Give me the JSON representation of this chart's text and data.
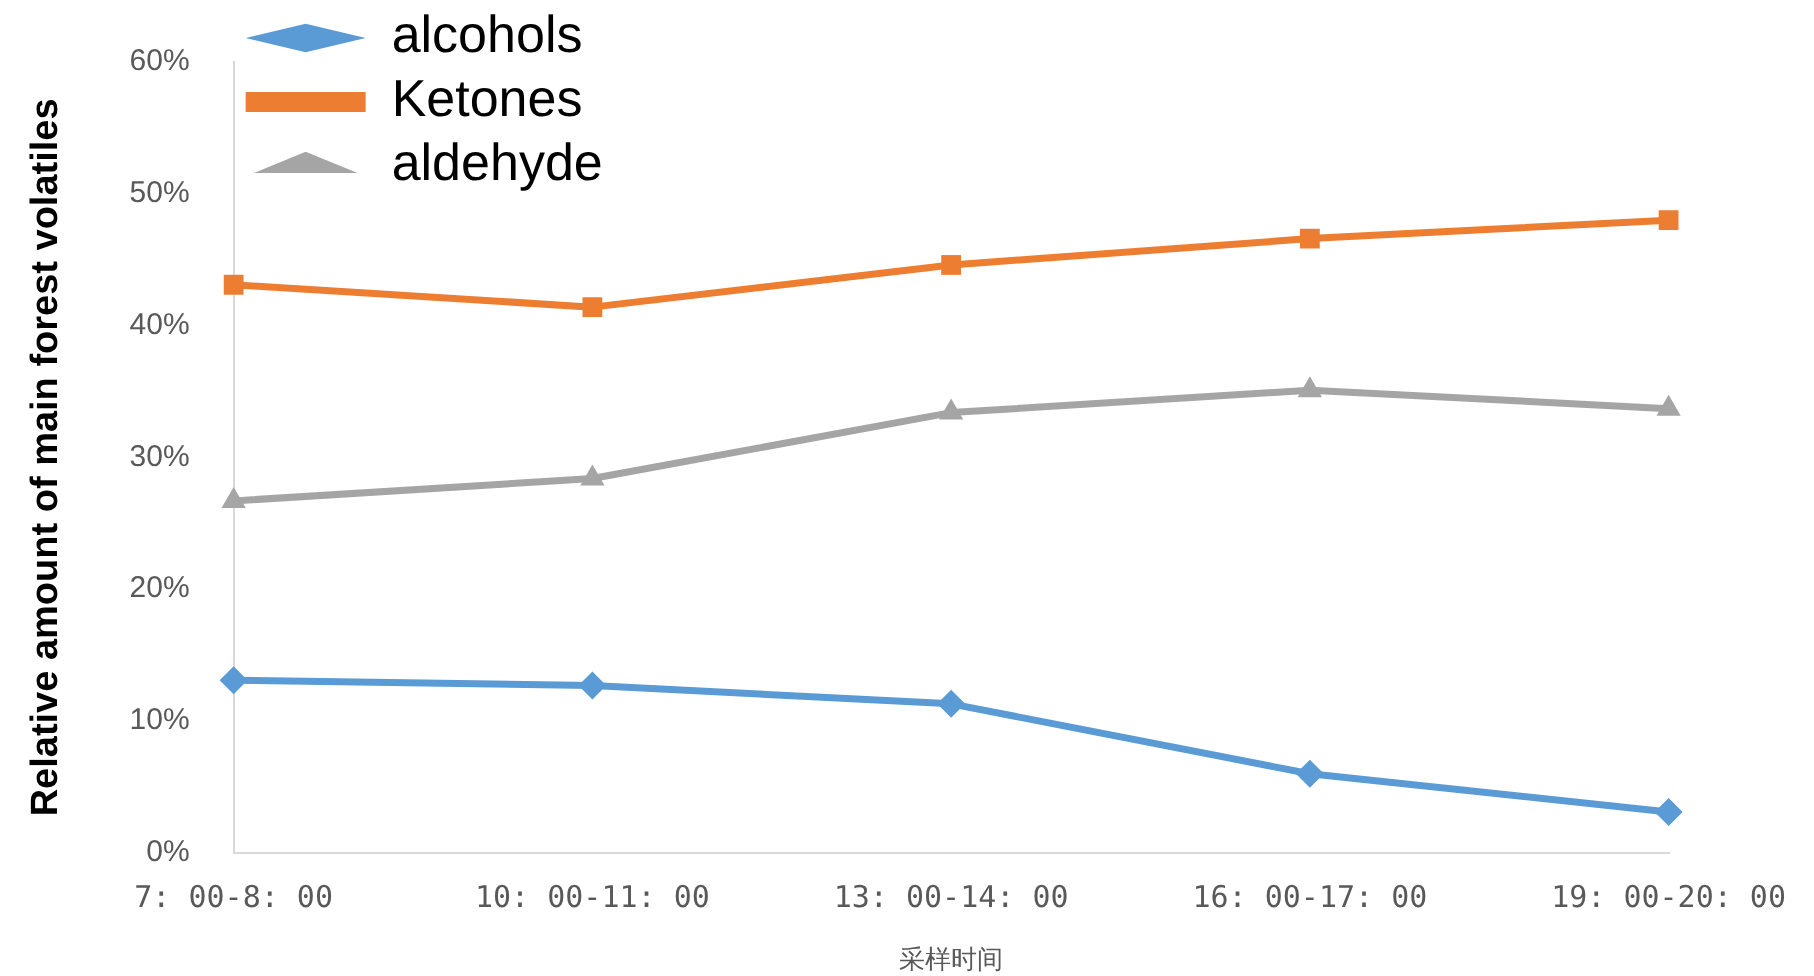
{
  "chart_data": {
    "type": "line",
    "xlabel": "采样时间",
    "ylabel": "Relative amount of main forest volatiles",
    "categories": [
      "7: 00-8: 00",
      "10: 00-11: 00",
      "13: 00-14: 00",
      "16: 00-17: 00",
      "19: 00-20: 00"
    ],
    "series": [
      {
        "name": "alcohols",
        "color": "#5b9bd5",
        "marker": "diamond",
        "values": [
          13.1,
          12.7,
          11.3,
          6.0,
          3.1
        ]
      },
      {
        "name": "Ketones",
        "color": "#ed7d31",
        "marker": "square",
        "values": [
          43.1,
          41.4,
          44.6,
          46.6,
          48.0
        ]
      },
      {
        "name": "aldehyde",
        "color": "#a5a5a5",
        "marker": "triangle",
        "values": [
          26.7,
          28.4,
          33.4,
          35.1,
          33.7
        ]
      }
    ],
    "ylim": [
      0,
      60
    ],
    "yticks": [
      {
        "value": 0,
        "label": "0%"
      },
      {
        "value": 10,
        "label": "10%"
      },
      {
        "value": 20,
        "label": "20%"
      },
      {
        "value": 30,
        "label": "30%"
      },
      {
        "value": 40,
        "label": "40%"
      },
      {
        "value": 50,
        "label": "50%"
      },
      {
        "value": 60,
        "label": "60%"
      }
    ],
    "grid": false,
    "legend": "top left"
  }
}
